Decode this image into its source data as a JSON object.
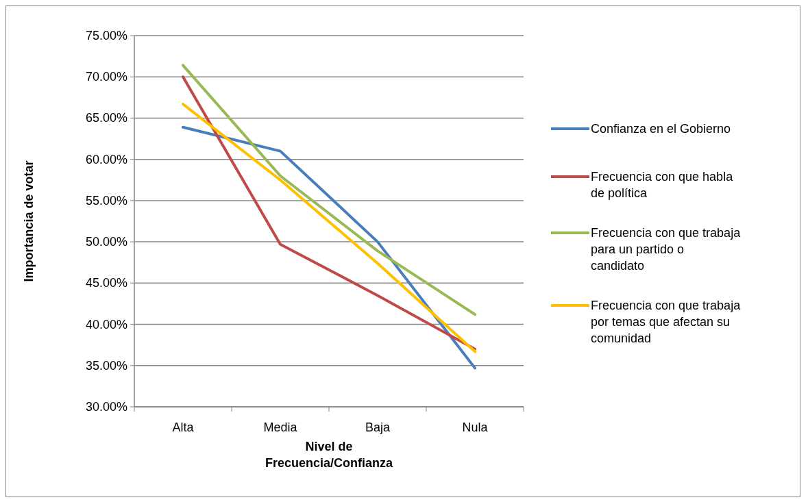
{
  "chart_data": {
    "type": "line",
    "xlabel": "Nivel de Frecuencia/Confianza",
    "ylabel": "Importancia de votar",
    "categories": [
      "Alta",
      "Media",
      "Baja",
      "Nula"
    ],
    "series": [
      {
        "name": "Confianza en el Gobierno",
        "color": "#4a7ebb",
        "values": [
          63.9,
          61.0,
          50.0,
          34.7
        ]
      },
      {
        "name": "Frecuencia con que habla de política",
        "color": "#be4b48",
        "values": [
          70.0,
          49.7,
          43.5,
          37.0
        ]
      },
      {
        "name": "Frecuencia con que trabaja para un partido o candidato",
        "color": "#98b954",
        "values": [
          71.4,
          58.0,
          48.9,
          41.2
        ]
      },
      {
        "name": "Frecuencia con que trabaja por temas que afectan su comunidad",
        "color": "#ffc000",
        "values": [
          66.7,
          57.5,
          47.4,
          36.7
        ]
      }
    ],
    "ylim": [
      30,
      75
    ],
    "yticks": [
      {
        "value": 30,
        "label": "30.00%"
      },
      {
        "value": 35,
        "label": "35.00%"
      },
      {
        "value": 40,
        "label": "40.00%"
      },
      {
        "value": 45,
        "label": "45.00%"
      },
      {
        "value": 50,
        "label": "50.00%"
      },
      {
        "value": 55,
        "label": "55.00%"
      },
      {
        "value": 60,
        "label": "60.00%"
      },
      {
        "value": 65,
        "label": "65.00%"
      },
      {
        "value": 70,
        "label": "70.00%"
      },
      {
        "value": 75,
        "label": "75.00%"
      }
    ],
    "grid": "y",
    "legend": "right",
    "marker": "none",
    "line_style": "solid"
  }
}
